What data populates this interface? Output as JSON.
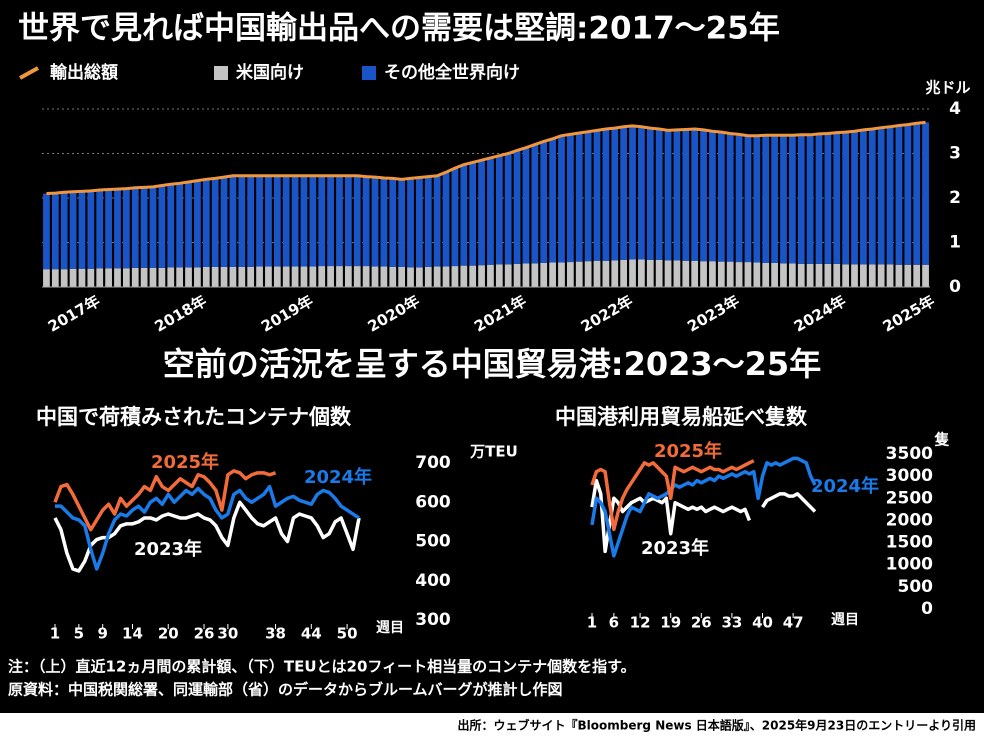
{
  "title": "世界で見れば中国輸出品への需要は堅調:2017～25年",
  "section_title": "空前の活況を呈する中国貿易港:2023～25年",
  "notes": [
    "注：（上）直近12ヵ月間の累計額、（下）TEUとは20フィート相当量のコンテナ個数を指す。",
    "原資料：中国税関総署、同運輸部（省）のデータからブルームバーグが推計し作図"
  ],
  "source": "出所：ウェブサイト『Bloomberg News 日本語版』、2025年9月23日のエントリーより引用",
  "chart_data": [
    {
      "type": "bar",
      "y_unit": "兆ドル",
      "ylim": [
        0,
        4
      ],
      "yticks": [
        0,
        1,
        2,
        3,
        4
      ],
      "grid": true,
      "categories": [
        null,
        null,
        null,
        null,
        null,
        "2017年",
        null,
        null,
        null,
        null,
        null,
        null,
        null,
        null,
        null,
        null,
        null,
        "2018年",
        null,
        null,
        null,
        null,
        null,
        null,
        null,
        null,
        null,
        null,
        null,
        "2019年",
        null,
        null,
        null,
        null,
        null,
        null,
        null,
        null,
        null,
        null,
        null,
        "2020年",
        null,
        null,
        null,
        null,
        null,
        null,
        null,
        null,
        null,
        null,
        null,
        "2021年",
        null,
        null,
        null,
        null,
        null,
        null,
        null,
        null,
        null,
        null,
        null,
        "2022年",
        null,
        null,
        null,
        null,
        null,
        null,
        null,
        null,
        null,
        null,
        null,
        "2023年",
        null,
        null,
        null,
        null,
        null,
        null,
        null,
        null,
        null,
        null,
        null,
        "2024年",
        null,
        null,
        null,
        null,
        null,
        null,
        null,
        null,
        null,
        "2025年"
      ],
      "series": [
        {
          "name": "輸出総額",
          "type": "line",
          "color": "#f0963c",
          "values": [
            2.1,
            2.11,
            2.13,
            2.14,
            2.15,
            2.16,
            2.18,
            2.19,
            2.2,
            2.21,
            2.23,
            2.24,
            2.25,
            2.28,
            2.31,
            2.33,
            2.36,
            2.39,
            2.42,
            2.44,
            2.47,
            2.5,
            2.5,
            2.5,
            2.5,
            2.5,
            2.5,
            2.5,
            2.5,
            2.5,
            2.5,
            2.5,
            2.5,
            2.5,
            2.5,
            2.5,
            2.48,
            2.47,
            2.45,
            2.44,
            2.42,
            2.44,
            2.46,
            2.48,
            2.5,
            2.58,
            2.67,
            2.75,
            2.8,
            2.85,
            2.9,
            2.95,
            3.0,
            3.07,
            3.13,
            3.2,
            3.27,
            3.33,
            3.4,
            3.43,
            3.46,
            3.49,
            3.52,
            3.55,
            3.57,
            3.6,
            3.62,
            3.6,
            3.57,
            3.55,
            3.52,
            3.53,
            3.54,
            3.55,
            3.53,
            3.5,
            3.48,
            3.45,
            3.43,
            3.4,
            3.4,
            3.41,
            3.41,
            3.41,
            3.41,
            3.42,
            3.42,
            3.44,
            3.45,
            3.47,
            3.48,
            3.5,
            3.53,
            3.55,
            3.58,
            3.6,
            3.63,
            3.65,
            3.68,
            3.7
          ]
        },
        {
          "name": "米国向け",
          "type": "bar",
          "color": "#c4c4c4",
          "values": [
            0.4,
            0.4,
            0.4,
            0.41,
            0.41,
            0.41,
            0.42,
            0.42,
            0.42,
            0.42,
            0.43,
            0.43,
            0.43,
            0.43,
            0.44,
            0.44,
            0.44,
            0.44,
            0.45,
            0.45,
            0.45,
            0.45,
            0.45,
            0.45,
            0.46,
            0.46,
            0.46,
            0.46,
            0.46,
            0.46,
            0.46,
            0.47,
            0.47,
            0.47,
            0.47,
            0.47,
            0.47,
            0.46,
            0.46,
            0.45,
            0.45,
            0.44,
            0.44,
            0.45,
            0.46,
            0.46,
            0.47,
            0.48,
            0.48,
            0.49,
            0.5,
            0.51,
            0.51,
            0.52,
            0.53,
            0.53,
            0.54,
            0.55,
            0.55,
            0.56,
            0.57,
            0.58,
            0.59,
            0.59,
            0.6,
            0.61,
            0.62,
            0.62,
            0.61,
            0.61,
            0.6,
            0.6,
            0.59,
            0.59,
            0.58,
            0.58,
            0.57,
            0.57,
            0.56,
            0.56,
            0.55,
            0.54,
            0.54,
            0.53,
            0.53,
            0.52,
            0.52,
            0.52,
            0.52,
            0.52,
            0.51,
            0.51,
            0.51,
            0.51,
            0.51,
            0.51,
            0.5,
            0.5,
            0.5,
            0.5
          ]
        },
        {
          "name": "その他全世界向け",
          "type": "bar",
          "color": "#1a55c8",
          "values": [
            1.7,
            1.71,
            1.73,
            1.73,
            1.74,
            1.75,
            1.76,
            1.77,
            1.78,
            1.79,
            1.8,
            1.81,
            1.82,
            1.85,
            1.87,
            1.89,
            1.92,
            1.95,
            1.97,
            1.99,
            2.02,
            2.05,
            2.05,
            2.05,
            2.04,
            2.04,
            2.04,
            2.04,
            2.04,
            2.04,
            2.04,
            2.03,
            2.03,
            2.03,
            2.03,
            2.03,
            2.01,
            2.01,
            1.99,
            1.99,
            1.97,
            2.0,
            2.02,
            2.03,
            2.04,
            2.12,
            2.2,
            2.27,
            2.32,
            2.36,
            2.4,
            2.44,
            2.49,
            2.55,
            2.6,
            2.67,
            2.73,
            2.78,
            2.85,
            2.87,
            2.89,
            2.91,
            2.93,
            2.96,
            2.97,
            2.99,
            3.0,
            2.98,
            2.96,
            2.94,
            2.92,
            2.93,
            2.95,
            2.96,
            2.95,
            2.92,
            2.91,
            2.88,
            2.87,
            2.84,
            2.85,
            2.87,
            2.87,
            2.88,
            2.88,
            2.9,
            2.9,
            2.92,
            2.93,
            2.95,
            2.97,
            2.99,
            3.02,
            3.04,
            3.07,
            3.09,
            3.13,
            3.15,
            3.18,
            3.2
          ]
        }
      ]
    },
    {
      "type": "line",
      "title": "中国で荷積みされたコンテナ個数",
      "y_unit": "万TEU",
      "x_unit": "週目",
      "xlim": [
        1,
        52
      ],
      "ylim": [
        300,
        700
      ],
      "yticks": [
        300,
        400,
        500,
        600,
        700
      ],
      "xticks": [
        1,
        5,
        9,
        14,
        20,
        26,
        30,
        38,
        44,
        50
      ],
      "x": [
        1,
        2,
        3,
        4,
        5,
        6,
        7,
        8,
        9,
        10,
        11,
        12,
        13,
        14,
        15,
        16,
        17,
        18,
        19,
        20,
        21,
        22,
        23,
        24,
        25,
        26,
        27,
        28,
        29,
        30,
        31,
        32,
        33,
        34,
        35,
        36,
        37,
        38,
        39,
        40,
        41,
        42,
        43,
        44,
        45,
        46,
        47,
        48,
        49,
        50,
        51,
        52
      ],
      "series": [
        {
          "name": "2025年",
          "color": "#f26b3a",
          "values": [
            600,
            640,
            645,
            620,
            590,
            560,
            530,
            555,
            580,
            595,
            570,
            610,
            590,
            605,
            620,
            640,
            630,
            665,
            640,
            630,
            645,
            660,
            650,
            640,
            670,
            665,
            650,
            630,
            580,
            670,
            680,
            675,
            660,
            670,
            675,
            675,
            670,
            675,
            null,
            null,
            null,
            null,
            null,
            null,
            null,
            null,
            null,
            null,
            null,
            null,
            null,
            null
          ]
        },
        {
          "name": "2024年",
          "color": "#1a7be8",
          "values": [
            590,
            590,
            575,
            560,
            555,
            540,
            480,
            430,
            470,
            520,
            555,
            570,
            565,
            580,
            590,
            575,
            600,
            610,
            595,
            620,
            600,
            615,
            630,
            620,
            635,
            620,
            610,
            580,
            560,
            570,
            620,
            630,
            610,
            600,
            610,
            620,
            640,
            590,
            600,
            610,
            615,
            605,
            600,
            595,
            620,
            630,
            625,
            610,
            590,
            580,
            570,
            560
          ]
        },
        {
          "name": "2023年",
          "color": "#ffffff",
          "values": [
            560,
            530,
            470,
            430,
            425,
            450,
            490,
            505,
            510,
            510,
            520,
            540,
            545,
            545,
            550,
            560,
            560,
            555,
            565,
            570,
            565,
            560,
            560,
            565,
            570,
            560,
            555,
            540,
            510,
            490,
            560,
            600,
            580,
            560,
            545,
            540,
            550,
            560,
            520,
            500,
            560,
            570,
            565,
            560,
            540,
            510,
            520,
            550,
            560,
            520,
            480,
            560
          ]
        }
      ]
    },
    {
      "type": "line",
      "title": "中国港利用貿易船延べ隻数",
      "y_unit": "隻",
      "x_unit": "週目",
      "xlim": [
        1,
        52
      ],
      "ylim": [
        0,
        3500
      ],
      "yticks": [
        0,
        500,
        1000,
        1500,
        2000,
        2500,
        3000,
        3500
      ],
      "xticks": [
        1,
        6,
        12,
        19,
        26,
        33,
        40,
        47
      ],
      "x": [
        1,
        2,
        3,
        4,
        5,
        6,
        7,
        8,
        9,
        10,
        11,
        12,
        13,
        14,
        15,
        16,
        17,
        18,
        19,
        20,
        21,
        22,
        23,
        24,
        25,
        26,
        27,
        28,
        29,
        30,
        31,
        32,
        33,
        34,
        35,
        36,
        37,
        38,
        39,
        40,
        41,
        42,
        43,
        44,
        45,
        46,
        47,
        48,
        49,
        50,
        51,
        52
      ],
      "series": [
        {
          "name": "2025年",
          "color": "#f26b3a",
          "values": [
            2800,
            3100,
            3150,
            3100,
            2400,
            1800,
            2200,
            2500,
            2700,
            2850,
            3000,
            3150,
            3300,
            3250,
            3300,
            3200,
            3100,
            3000,
            2500,
            3200,
            3150,
            3100,
            3150,
            3200,
            3150,
            3100,
            3150,
            3200,
            3150,
            3150,
            3100,
            3150,
            3200,
            3150,
            3200,
            3250,
            3300,
            3350,
            null,
            null,
            null,
            null,
            null,
            null,
            null,
            null,
            null,
            null,
            null,
            null,
            null,
            null
          ]
        },
        {
          "name": "2024年",
          "color": "#1a7be8",
          "values": [
            1900,
            2500,
            2400,
            2200,
            1700,
            1200,
            1500,
            1800,
            2100,
            2300,
            2250,
            2200,
            2400,
            2600,
            2550,
            2500,
            2550,
            2600,
            2700,
            2800,
            2750,
            2800,
            2850,
            2800,
            2900,
            2850,
            2900,
            2950,
            2900,
            3000,
            2950,
            3000,
            3050,
            3000,
            3050,
            3100,
            3050,
            3100,
            2500,
            3000,
            3300,
            3250,
            3300,
            3250,
            3300,
            3350,
            3400,
            3400,
            3350,
            3300,
            3000,
            2800
          ]
        },
        {
          "name": "2023年",
          "color": "#ffffff",
          "values": [
            2300,
            2900,
            2600,
            1300,
            1900,
            2500,
            2400,
            2200,
            2300,
            2400,
            2450,
            2500,
            2400,
            2450,
            2500,
            2450,
            2400,
            2500,
            1700,
            2400,
            2350,
            2300,
            2250,
            2300,
            2250,
            2300,
            2200,
            2250,
            2300,
            2250,
            2200,
            2250,
            2300,
            2250,
            2200,
            2250,
            2000,
            null,
            null,
            2300,
            2450,
            2500,
            2550,
            2600,
            2600,
            2550,
            2550,
            2600,
            2500,
            2400,
            2300,
            2200
          ]
        }
      ]
    }
  ]
}
